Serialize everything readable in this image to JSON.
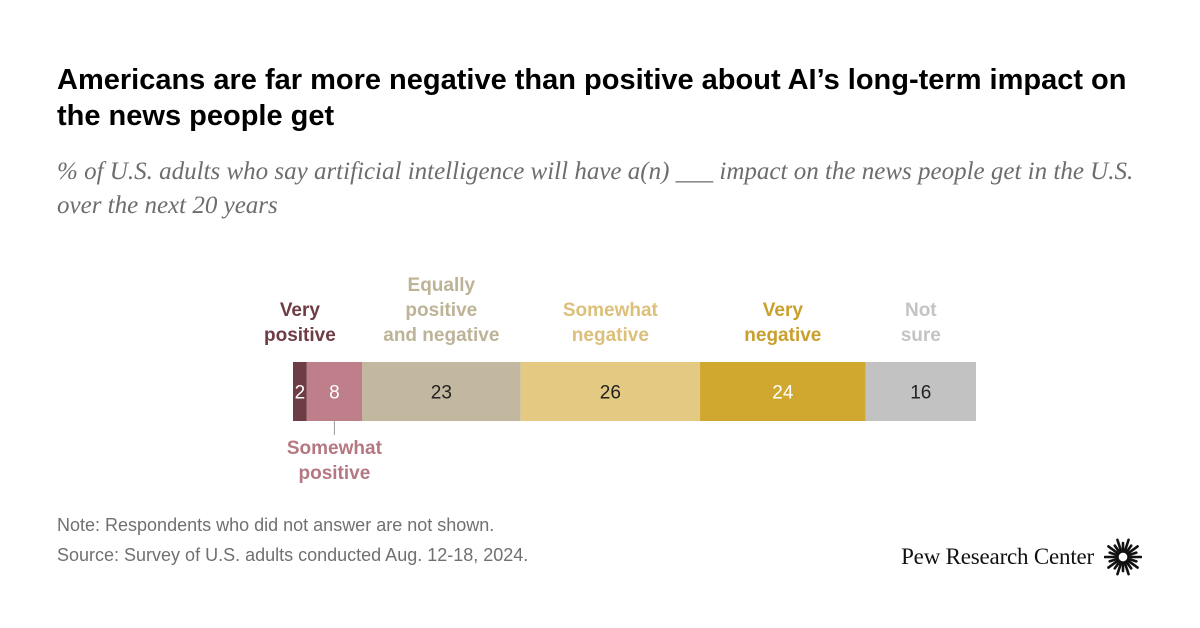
{
  "title": "Americans are far more negative than positive about AI’s long-term impact on the news people get",
  "subtitle": "% of U.S. adults who say artificial intelligence will have a(n) ___ impact on the news people get in the U.S. over the next 20 years",
  "chart_data": {
    "type": "bar",
    "orientation": "horizontal",
    "stacked": true,
    "categories": [
      "Very positive",
      "Somewhat positive",
      "Equally positive and negative",
      "Somewhat negative",
      "Very negative",
      "Not sure"
    ],
    "category_lines": [
      [
        "Very",
        "positive"
      ],
      [
        "Somewhat",
        "positive"
      ],
      [
        "Equally",
        "positive",
        "and negative"
      ],
      [
        "Somewhat",
        "negative"
      ],
      [
        "Very",
        "negative"
      ],
      [
        "Not",
        "sure"
      ]
    ],
    "values": [
      2,
      8,
      23,
      26,
      24,
      16
    ],
    "colors": [
      "#6e3c45",
      "#bf7f8a",
      "#c2b8a0",
      "#e4c983",
      "#d0a72f",
      "#c2c2c2"
    ],
    "label_colors": [
      "#6e3c45",
      "#b57882",
      "#bdb397",
      "#dcc07a",
      "#c9a02c",
      "#c4c4c4"
    ],
    "value_text_colors": [
      "#ffffff",
      "#ffffff",
      "#222222",
      "#222222",
      "#ffffff",
      "#222222"
    ],
    "label_placement": [
      "above",
      "below",
      "above",
      "above",
      "above",
      "above"
    ],
    "xlim": [
      0,
      99
    ]
  },
  "footer": {
    "note": "Note: Respondents who did not answer are not shown.",
    "source": "Source: Survey of U.S. adults conducted Aug. 12-18, 2024."
  },
  "logo": {
    "text": "Pew Research Center",
    "icon": "pew-sunburst-icon"
  }
}
